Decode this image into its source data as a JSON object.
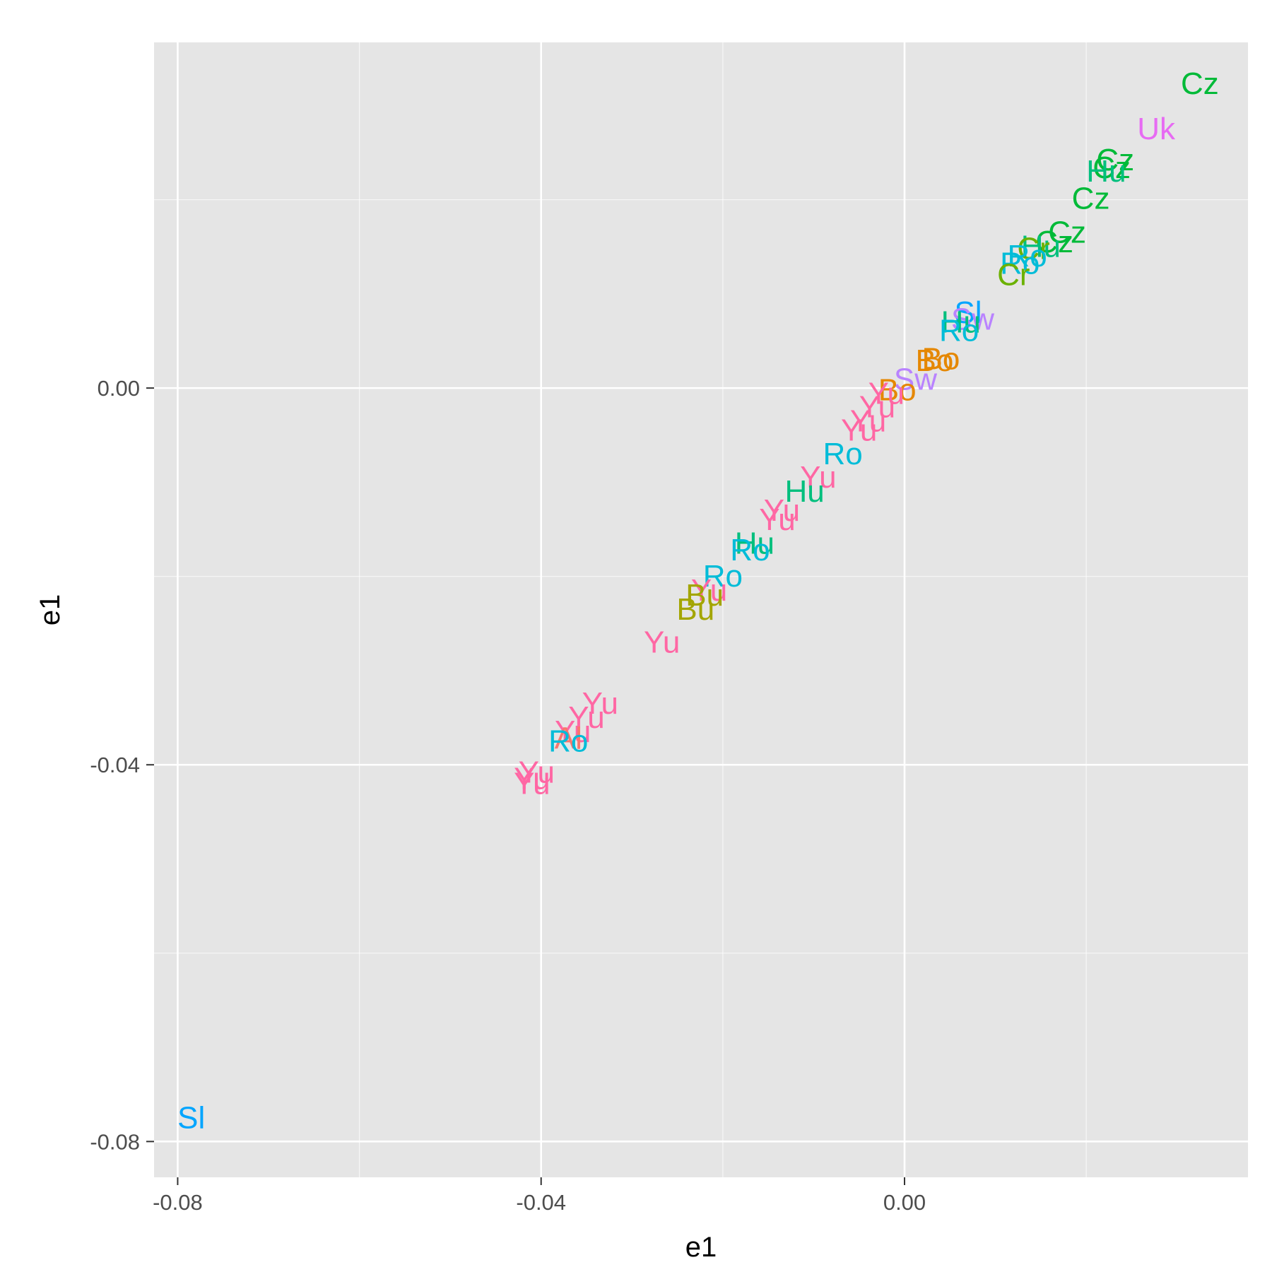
{
  "chart_data": {
    "type": "scatter",
    "title": "",
    "xlabel": "e1",
    "ylabel": "e1",
    "xlim": [
      -0.0826,
      0.0378
    ],
    "ylim": [
      -0.0838,
      0.0367
    ],
    "x_ticks": [
      {
        "value": -0.08,
        "label": "-0.08"
      },
      {
        "value": -0.04,
        "label": "-0.04"
      },
      {
        "value": 0.0,
        "label": "0.00"
      }
    ],
    "y_ticks": [
      {
        "value": 0.0,
        "label": "0.00"
      },
      {
        "value": -0.04,
        "label": "-0.04"
      },
      {
        "value": -0.08,
        "label": "-0.08"
      }
    ],
    "minor_grid": {
      "x": [
        -0.06,
        -0.02,
        0.02
      ],
      "y": [
        0.02,
        -0.02,
        -0.06
      ]
    },
    "grid": true,
    "background": "#e5e5e5",
    "gridline_color": "#ffffff",
    "legend": "none",
    "colors": {
      "Al": "#f8766d",
      "Bo": "#e58700",
      "Bu": "#a3a500",
      "Cr": "#6bb100",
      "Cz": "#00ba38",
      "Hu": "#00bf7d",
      "Ro": "#00bcd8",
      "Sl": "#00a5ff",
      "Sw": "#b983ff",
      "Uk": "#e76bf3",
      "Yu": "#ff67a4"
    },
    "points": [
      {
        "label": "Cz",
        "x": 0.0325,
        "y": 0.0323
      },
      {
        "label": "Uk",
        "x": 0.0277,
        "y": 0.0275
      },
      {
        "label": "Cz",
        "x": 0.0232,
        "y": 0.0242
      },
      {
        "label": "Cz",
        "x": 0.0228,
        "y": 0.0234
      },
      {
        "label": "Hu",
        "x": 0.0222,
        "y": 0.023
      },
      {
        "label": "Cz",
        "x": 0.0205,
        "y": 0.0201
      },
      {
        "label": "Cz",
        "x": 0.0179,
        "y": 0.0165
      },
      {
        "label": "Cz",
        "x": 0.0165,
        "y": 0.0155
      },
      {
        "label": "Hu",
        "x": 0.015,
        "y": 0.015
      },
      {
        "label": "Cr",
        "x": 0.0142,
        "y": 0.0148
      },
      {
        "label": "Ro",
        "x": 0.0135,
        "y": 0.014
      },
      {
        "label": "Ro",
        "x": 0.0127,
        "y": 0.0132
      },
      {
        "label": "Cr",
        "x": 0.012,
        "y": 0.012
      },
      {
        "label": "Sl",
        "x": 0.007,
        "y": 0.008
      },
      {
        "label": "Sw",
        "x": 0.0075,
        "y": 0.0073
      },
      {
        "label": "Hu",
        "x": 0.0062,
        "y": 0.007
      },
      {
        "label": "Ro",
        "x": 0.006,
        "y": 0.0061
      },
      {
        "label": "Bo",
        "x": 0.004,
        "y": 0.0031
      },
      {
        "label": "Bo",
        "x": 0.0033,
        "y": 0.0029
      },
      {
        "label": "Sw",
        "x": 0.0012,
        "y": 0.0009
      },
      {
        "label": "Bo",
        "x": -0.0008,
        "y": -0.0002
      },
      {
        "label": "Yu",
        "x": -0.002,
        "y": -0.0006
      },
      {
        "label": "Yu",
        "x": -0.003,
        "y": -0.002
      },
      {
        "label": "Yu",
        "x": -0.004,
        "y": -0.0035
      },
      {
        "label": "Yu",
        "x": -0.005,
        "y": -0.0045
      },
      {
        "label": "Ro",
        "x": -0.0068,
        "y": -0.007
      },
      {
        "label": "Yu",
        "x": -0.0095,
        "y": -0.0095
      },
      {
        "label": "Hu",
        "x": -0.011,
        "y": -0.011
      },
      {
        "label": "Yu",
        "x": -0.0135,
        "y": -0.013
      },
      {
        "label": "Yu",
        "x": -0.014,
        "y": -0.014
      },
      {
        "label": "Hu",
        "x": -0.0165,
        "y": -0.0165
      },
      {
        "label": "Ro",
        "x": -0.017,
        "y": -0.0172
      },
      {
        "label": "Ro",
        "x": -0.02,
        "y": -0.02
      },
      {
        "label": "Yu",
        "x": -0.0215,
        "y": -0.0215
      },
      {
        "label": "Bu",
        "x": -0.022,
        "y": -0.022
      },
      {
        "label": "Bu",
        "x": -0.023,
        "y": -0.0235
      },
      {
        "label": "Yu",
        "x": -0.0267,
        "y": -0.027
      },
      {
        "label": "Yu",
        "x": -0.0335,
        "y": -0.0335
      },
      {
        "label": "Yu",
        "x": -0.035,
        "y": -0.035
      },
      {
        "label": "Yu",
        "x": -0.0365,
        "y": -0.0365
      },
      {
        "label": "Al",
        "x": -0.037,
        "y": -0.0372
      },
      {
        "label": "Ro",
        "x": -0.037,
        "y": -0.0375
      },
      {
        "label": "Yu",
        "x": -0.0405,
        "y": -0.0408
      },
      {
        "label": "Yu",
        "x": -0.041,
        "y": -0.0415
      },
      {
        "label": "Yu",
        "x": -0.041,
        "y": -0.042
      },
      {
        "label": "Sl",
        "x": -0.0785,
        "y": -0.0775
      }
    ]
  }
}
